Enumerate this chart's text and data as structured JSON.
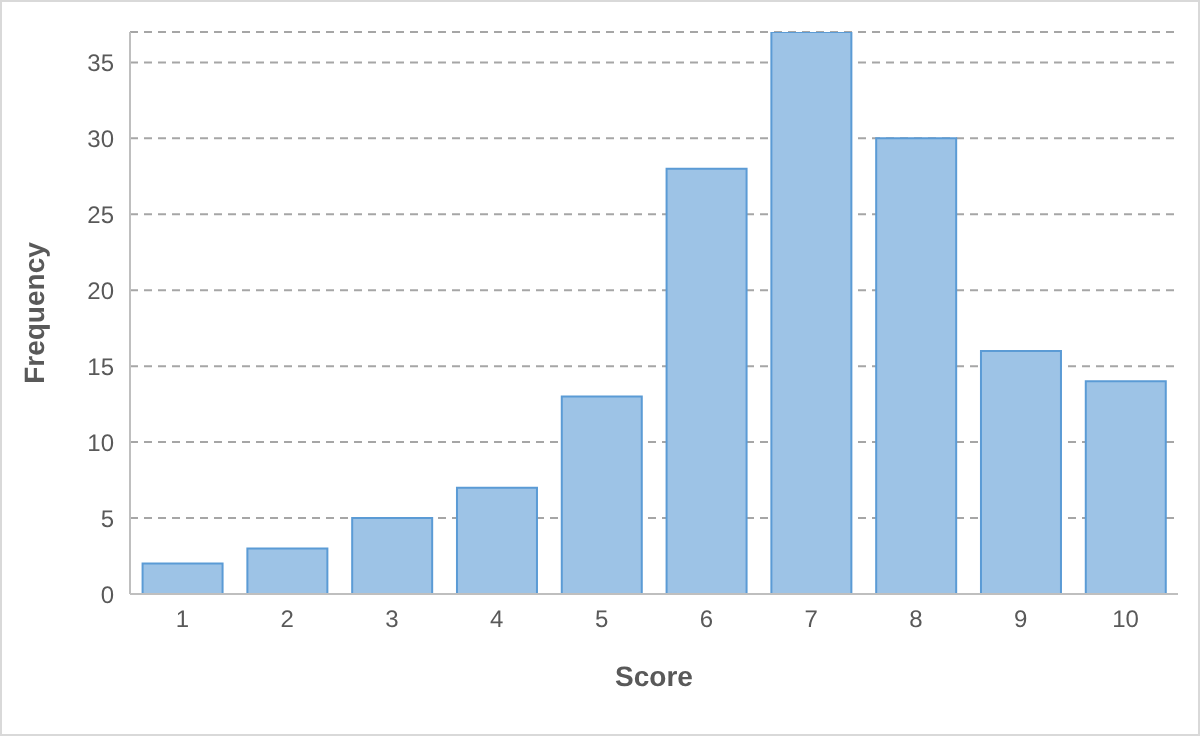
{
  "chart_data": {
    "type": "bar",
    "xlabel": "Score",
    "ylabel": "Frequency",
    "categories": [
      "1",
      "2",
      "3",
      "4",
      "5",
      "6",
      "7",
      "8",
      "9",
      "10"
    ],
    "values": [
      2,
      3,
      5,
      7,
      13,
      28,
      37,
      30,
      16,
      14
    ],
    "color": "#9dc3e6",
    "ylim": [
      0,
      37
    ],
    "yticks": [
      0,
      5,
      10,
      15,
      20,
      25,
      30,
      35
    ],
    "grid": "y",
    "legend": false
  }
}
